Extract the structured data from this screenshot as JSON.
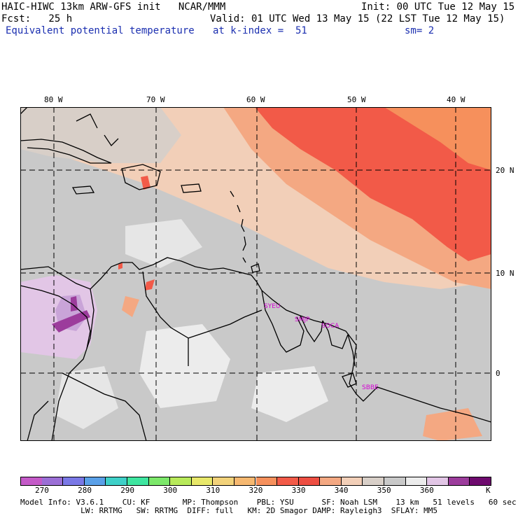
{
  "header": {
    "model_line": "HAIC-HIWC 13km ARW-GFS init   NCAR/MMM",
    "init": "Init: 00 UTC Tue 12 May 15",
    "fcst": "Fcst:   25 h",
    "valid": "Valid: 01 UTC Wed 13 May 15 (22 LST Tue 12 May 15)",
    "field": "Equivalent potential temperature",
    "level": "at k-index =  51",
    "smoothing": "sm= 2"
  },
  "lon_labels": [
    "80 W",
    "70 W",
    "60 W",
    "50 W",
    "40 W"
  ],
  "lat_labels": [
    "20 N",
    "10 N",
    "0"
  ],
  "stations": [
    "SYEU",
    "SMJP",
    "SOCA",
    "SBBE"
  ],
  "colorbar": {
    "colors": [
      "#c45ac8",
      "#9b6fd6",
      "#7a78e6",
      "#5aa0e8",
      "#3ed0c8",
      "#3ee6a0",
      "#7ce86a",
      "#b8ea5a",
      "#e8e86a",
      "#f2d27a",
      "#f6b870",
      "#f6905c",
      "#f25a48",
      "#ee4e42",
      "#f4a882",
      "#f2cfb8",
      "#d8cfc8",
      "#c9c9c9",
      "#ececec",
      "#e2c6e6",
      "#9c3c9c",
      "#6e0a6e"
    ],
    "tick_labels": [
      "270",
      "280",
      "290",
      "300",
      "310",
      "320",
      "330",
      "340",
      "350",
      "360"
    ],
    "unit": "K"
  },
  "footer": {
    "line1": "Model Info: V3.6.1    CU: KF       MP: Thompson    PBL: YSU      SF: Noah LSM    13 km   51 levels   60 sec",
    "line2": "             LW: RRTMG   SW: RRTMG  DIFF: full   KM: 2D Smagor DAMP: Rayleigh3  SFLAY: MM5"
  }
}
